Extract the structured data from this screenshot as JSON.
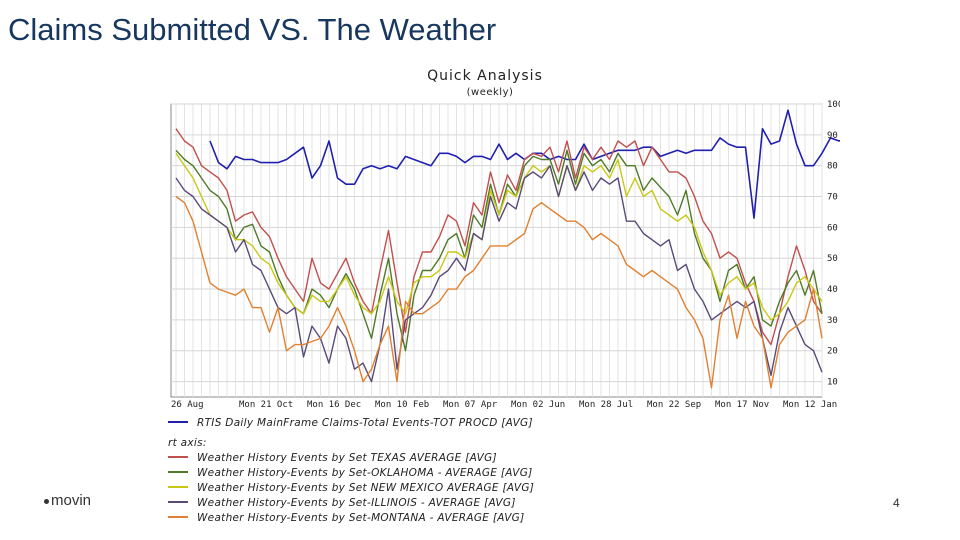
{
  "slide": {
    "title": "Claims Submitted VS. The Weather",
    "page_number": "4",
    "logo_text": "movin"
  },
  "chart_data": {
    "type": "line",
    "title": "Quick Analysis",
    "subtitle": "(weekly)",
    "right_axis_label": "rt axis:",
    "ylim": [
      5,
      100
    ],
    "y_ticks": [
      10,
      20,
      30,
      40,
      50,
      60,
      70,
      80,
      90,
      100
    ],
    "y_tick_labels": [
      "10",
      "20",
      "30",
      "40",
      "50",
      "60",
      "70",
      "80",
      "90",
      "100"
    ],
    "x_ticks": [
      {
        "i": 0,
        "label": "26 Aug"
      },
      {
        "i": 8,
        "label": "Mon 21 Oct"
      },
      {
        "i": 16,
        "label": "Mon 16 Dec"
      },
      {
        "i": 24,
        "label": "Mon 10 Feb"
      },
      {
        "i": 32,
        "label": "Mon 07 Apr"
      },
      {
        "i": 40,
        "label": "Mon 02 Jun"
      },
      {
        "i": 48,
        "label": "Mon 28 Jul"
      },
      {
        "i": 56,
        "label": "Mon 22 Sep"
      },
      {
        "i": 64,
        "label": "Mon 17 Nov"
      },
      {
        "i": 72,
        "label": "Mon 12 Jan"
      }
    ],
    "series": [
      {
        "name": "RTIS Daily MainFrame Claims-Total Events-TOT PROCD [AVG]",
        "color": "#2020b0",
        "start": 4,
        "values": [
          88,
          81,
          79,
          83,
          82,
          82,
          81,
          81,
          81,
          82,
          84,
          86,
          76,
          80,
          88,
          76,
          74,
          74,
          79,
          80,
          79,
          80,
          79,
          83,
          82,
          81,
          80,
          84,
          84,
          83,
          81,
          83,
          83,
          82,
          87,
          82,
          84,
          82,
          84,
          84,
          82,
          83,
          82,
          82,
          87,
          82,
          83,
          84,
          85,
          85,
          85,
          86,
          86,
          83,
          84,
          85,
          84,
          85,
          85,
          85,
          89,
          87,
          86,
          86,
          63,
          92,
          87,
          88,
          98,
          87,
          80,
          80,
          84,
          89,
          88,
          89,
          86,
          87
        ]
      },
      {
        "name": "Weather History Events by Set  TEXAS   AVERAGE [AVG]",
        "color": "#c0504d",
        "values": [
          92,
          88,
          86,
          80,
          78,
          76,
          72,
          62,
          64,
          65,
          60,
          57,
          50,
          44,
          40,
          36,
          50,
          42,
          40,
          45,
          50,
          42,
          36,
          32,
          46,
          59,
          42,
          26,
          44,
          52,
          52,
          57,
          64,
          62,
          54,
          68,
          64,
          78,
          68,
          77,
          72,
          82,
          84,
          83,
          86,
          78,
          88,
          76,
          86,
          82,
          86,
          82,
          88,
          86,
          88,
          80,
          86,
          82,
          78,
          78,
          76,
          70,
          62,
          58,
          50,
          52,
          50,
          42,
          36,
          26,
          22,
          32,
          44,
          54,
          46,
          36,
          32
        ]
      },
      {
        "name": "Weather History-Events by Set-OKLAHOMA - AVERAGE [AVG]",
        "color": "#4f7a28",
        "values": [
          85,
          82,
          80,
          76,
          72,
          70,
          66,
          56,
          60,
          61,
          54,
          52,
          44,
          38,
          34,
          32,
          40,
          38,
          34,
          40,
          45,
          40,
          32,
          24,
          38,
          50,
          32,
          20,
          38,
          46,
          46,
          50,
          56,
          58,
          50,
          64,
          60,
          74,
          64,
          74,
          70,
          80,
          83,
          82,
          82,
          74,
          85,
          74,
          84,
          80,
          82,
          78,
          84,
          80,
          80,
          72,
          76,
          73,
          70,
          64,
          72,
          58,
          50,
          46,
          36,
          46,
          48,
          40,
          44,
          30,
          28,
          36,
          42,
          46,
          38,
          46,
          32
        ]
      },
      {
        "name": "Weather History-Events by Set  NEW MEXICO    AVERAGE [AVG]",
        "color": "#c8c814",
        "values": [
          84,
          80,
          76,
          70,
          64,
          62,
          60,
          56,
          56,
          54,
          50,
          48,
          42,
          38,
          34,
          32,
          38,
          36,
          36,
          40,
          44,
          38,
          34,
          32,
          36,
          44,
          36,
          32,
          42,
          44,
          44,
          46,
          52,
          52,
          50,
          58,
          56,
          72,
          64,
          72,
          70,
          76,
          80,
          78,
          80,
          70,
          80,
          72,
          80,
          78,
          80,
          76,
          82,
          70,
          76,
          70,
          72,
          66,
          64,
          62,
          64,
          60,
          52,
          46,
          38,
          42,
          44,
          40,
          42,
          34,
          30,
          32,
          36,
          42,
          44,
          40,
          36
        ]
      },
      {
        "name": "Weather History-Events by Set-ILLINOIS - AVERAGE [AVG]",
        "color": "#5a4a78",
        "values": [
          76,
          72,
          70,
          66,
          64,
          62,
          60,
          52,
          56,
          48,
          46,
          40,
          34,
          32,
          34,
          18,
          28,
          24,
          16,
          28,
          24,
          14,
          16,
          10,
          22,
          40,
          14,
          30,
          32,
          34,
          38,
          44,
          46,
          50,
          46,
          58,
          56,
          70,
          62,
          68,
          66,
          76,
          78,
          76,
          80,
          70,
          80,
          72,
          78,
          72,
          76,
          74,
          76,
          62,
          62,
          58,
          56,
          54,
          56,
          46,
          48,
          40,
          36,
          30,
          32,
          34,
          36,
          34,
          36,
          24,
          12,
          26,
          34,
          28,
          22,
          20,
          13
        ]
      },
      {
        "name": "Weather History-Events by Set-MONTANA - AVERAGE [AVG]",
        "color": "#e08030",
        "values": [
          70,
          68,
          62,
          52,
          42,
          40,
          39,
          38,
          40,
          34,
          34,
          26,
          34,
          20,
          22,
          22,
          23,
          24,
          28,
          34,
          28,
          20,
          10,
          14,
          22,
          28,
          10,
          36,
          32,
          32,
          34,
          36,
          40,
          40,
          44,
          46,
          50,
          54,
          54,
          54,
          56,
          58,
          66,
          68,
          66,
          64,
          62,
          62,
          60,
          56,
          58,
          56,
          54,
          48,
          46,
          44,
          46,
          44,
          42,
          40,
          34,
          30,
          24,
          8,
          30,
          38,
          24,
          36,
          28,
          24,
          8,
          22,
          26,
          28,
          30,
          40,
          24
        ]
      }
    ]
  }
}
